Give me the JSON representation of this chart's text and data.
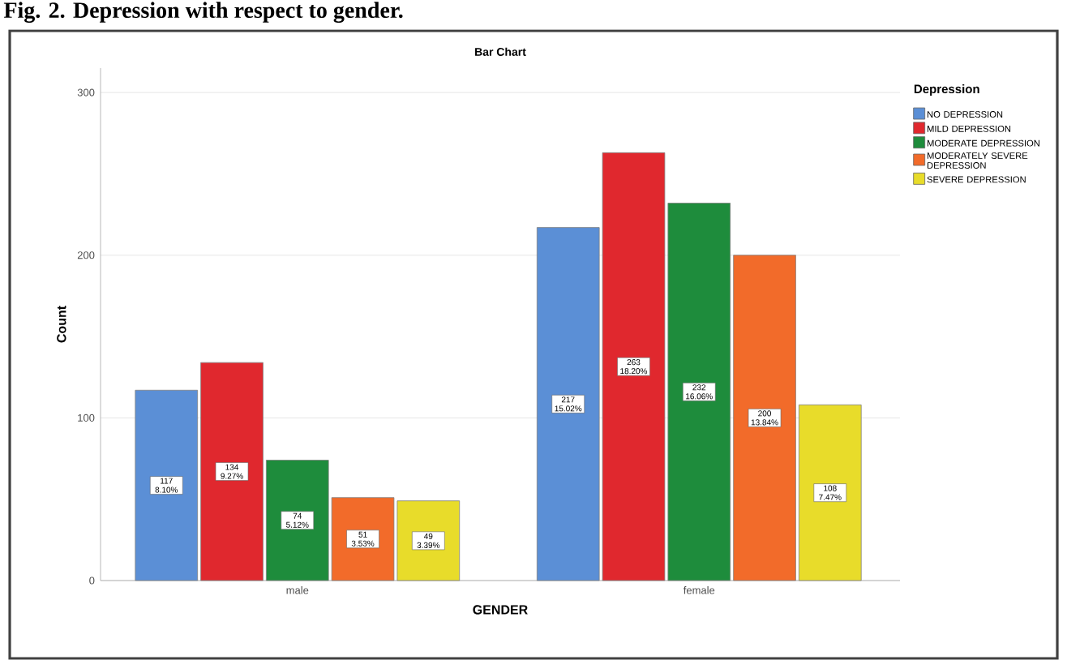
{
  "chart_data": {
    "type": "bar",
    "title": "Bar Chart",
    "xlabel": "GENDER",
    "ylabel": "Count",
    "legend_title": "Depression",
    "annotations": [
      "Fig. 2. Depression with respect to gender."
    ],
    "categories": [
      "male",
      "female"
    ],
    "series": [
      {
        "name": "NO DEPRESSION",
        "color": "#5b8fd6",
        "values": [
          117,
          217
        ],
        "value_labels": [
          "117 8.10%",
          "217 15.02%"
        ]
      },
      {
        "name": "MILD DEPRESSION",
        "color": "#e0282e",
        "values": [
          134,
          263
        ],
        "value_labels": [
          "134 9.27%",
          "263 18.20%"
        ]
      },
      {
        "name": "MODERATE DEPRESSION",
        "color": "#1e8c3c",
        "values": [
          74,
          232
        ],
        "value_labels": [
          "74 5.12%",
          "232 16.06%"
        ]
      },
      {
        "name": "MODERATELY SEVERE DEPRESSION",
        "color": "#f26b2a",
        "values": [
          51,
          200
        ],
        "value_labels": [
          "51 3.53%",
          "200 13.84%"
        ]
      },
      {
        "name": "SEVERE DEPRESSION",
        "color": "#e8dc2a",
        "values": [
          49,
          108
        ],
        "value_labels": [
          "49 3.39%",
          "108 7.47%"
        ]
      }
    ],
    "ylim": [
      0,
      315
    ],
    "yticks": [
      0,
      100,
      200,
      300
    ],
    "grid": "y",
    "legend": "top right"
  }
}
